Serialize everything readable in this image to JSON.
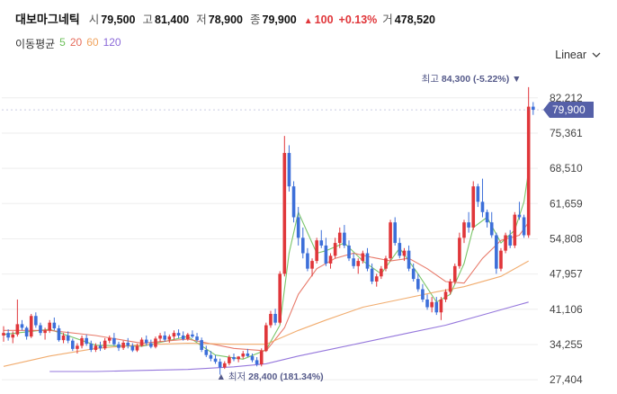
{
  "header": {
    "name": "대보마그네틱",
    "open_label": "시",
    "open": "79,500",
    "high_label": "고",
    "high": "81,400",
    "low_label": "저",
    "low": "78,900",
    "close_label": "종",
    "close": "79,900",
    "change_arrow": "▲",
    "change": "100",
    "change_pct": "+0.13%",
    "volume_label": "거",
    "volume": "478,520"
  },
  "ma_legend": {
    "label": "이동평균",
    "periods": [
      {
        "text": "5",
        "color": "#6bbf59"
      },
      {
        "text": "20",
        "color": "#e56b5a"
      },
      {
        "text": "60",
        "color": "#f0a35e"
      },
      {
        "text": "120",
        "color": "#8a68d8"
      }
    ]
  },
  "scale_select": {
    "value": "Linear",
    "icon": "chevron-down-icon"
  },
  "colors": {
    "up": "#e0363a",
    "down": "#3d6fd9",
    "current_label_bg": "#5560a8",
    "annotation": "#555a8a"
  },
  "chart_data": {
    "type": "candlestick",
    "y_ticks": [
      "82,212",
      "75,361",
      "68,510",
      "61,659",
      "54,808",
      "47,957",
      "41,106",
      "34,255",
      "27,404"
    ],
    "y_tick_values": [
      82212,
      75361,
      68510,
      61659,
      54808,
      47957,
      41106,
      34255,
      27404
    ],
    "ylim": [
      25500,
      89000
    ],
    "grid": true,
    "current_price": "79,900",
    "current_value": 79900,
    "high_annotation": {
      "label": "최고",
      "value": "84,300",
      "pct": "(-5.22%)",
      "arrow": "▼",
      "index": 113
    },
    "low_annotation": {
      "label": "최저",
      "value": "28,400",
      "pct": "(181.34%)",
      "arrow": "▲",
      "index": 47
    },
    "candles": [
      [
        36000,
        37800,
        34800,
        36500
      ],
      [
        36500,
        37200,
        35000,
        35600
      ],
      [
        35600,
        36800,
        34500,
        36200
      ],
      [
        36200,
        43000,
        35800,
        38200
      ],
      [
        38200,
        39000,
        37000,
        37500
      ],
      [
        37500,
        37800,
        35200,
        35800
      ],
      [
        35800,
        40200,
        35500,
        39800
      ],
      [
        39800,
        40500,
        37500,
        38000
      ],
      [
        38000,
        38500,
        36000,
        36500
      ],
      [
        36500,
        37500,
        35200,
        37000
      ],
      [
        37000,
        39000,
        36500,
        38500
      ],
      [
        38500,
        39500,
        37000,
        37400
      ],
      [
        37400,
        38000,
        34800,
        35100
      ],
      [
        35100,
        36500,
        34500,
        36000
      ],
      [
        36000,
        36800,
        34500,
        35000
      ],
      [
        35000,
        35400,
        33000,
        33400
      ],
      [
        33400,
        34500,
        32500,
        34000
      ],
      [
        34000,
        36000,
        33500,
        35500
      ],
      [
        35500,
        36200,
        34000,
        34400
      ],
      [
        34400,
        35000,
        32800,
        33200
      ],
      [
        33200,
        34500,
        32800,
        34000
      ],
      [
        34000,
        34800,
        33000,
        33500
      ],
      [
        33500,
        35500,
        33200,
        35000
      ],
      [
        35000,
        36000,
        34500,
        35500
      ],
      [
        35500,
        36500,
        34000,
        34300
      ],
      [
        34300,
        34800,
        33000,
        33600
      ],
      [
        33600,
        35000,
        33200,
        34600
      ],
      [
        34600,
        35500,
        33500,
        34000
      ],
      [
        34000,
        34500,
        32800,
        33100
      ],
      [
        33100,
        34400,
        32800,
        34000
      ],
      [
        34000,
        35600,
        33800,
        35200
      ],
      [
        35200,
        36000,
        34000,
        34500
      ],
      [
        34500,
        35200,
        33500,
        33800
      ],
      [
        33800,
        35800,
        33500,
        35400
      ],
      [
        35400,
        36500,
        34800,
        36000
      ],
      [
        36000,
        36800,
        34800,
        35200
      ],
      [
        35200,
        36200,
        34600,
        35800
      ],
      [
        35800,
        37000,
        35200,
        36500
      ],
      [
        36500,
        37200,
        35500,
        36000
      ],
      [
        36000,
        36800,
        35000,
        35300
      ],
      [
        35300,
        36500,
        35000,
        36200
      ],
      [
        36200,
        37000,
        35500,
        35800
      ],
      [
        35800,
        36500,
        34800,
        35100
      ],
      [
        35100,
        35600,
        32800,
        33200
      ],
      [
        33200,
        34000,
        31800,
        32200
      ],
      [
        32200,
        33000,
        31000,
        31500
      ],
      [
        31500,
        32200,
        30500,
        30900
      ],
      [
        30900,
        31500,
        28400,
        29800
      ],
      [
        29800,
        31000,
        29500,
        30600
      ],
      [
        30600,
        32200,
        30200,
        31800
      ],
      [
        31800,
        32500,
        31000,
        31400
      ],
      [
        31400,
        32000,
        30800,
        31900
      ],
      [
        31900,
        33000,
        31500,
        32500
      ],
      [
        32500,
        33400,
        31800,
        32000
      ],
      [
        32000,
        32500,
        30800,
        31200
      ],
      [
        31200,
        31800,
        30000,
        30400
      ],
      [
        30400,
        33500,
        30000,
        33000
      ],
      [
        33000,
        38500,
        32800,
        38000
      ],
      [
        38000,
        40800,
        37500,
        40200
      ],
      [
        40200,
        41200,
        38000,
        38500
      ],
      [
        38500,
        48500,
        38200,
        48000
      ],
      [
        48000,
        74800,
        47500,
        71500
      ],
      [
        71500,
        73000,
        64000,
        65000
      ],
      [
        65000,
        66000,
        58000,
        59000
      ],
      [
        59000,
        61000,
        53500,
        55000
      ],
      [
        55000,
        57000,
        51000,
        52000
      ],
      [
        52000,
        53000,
        48500,
        49000
      ],
      [
        49000,
        51000,
        47500,
        50500
      ],
      [
        50500,
        55000,
        50000,
        54500
      ],
      [
        54500,
        56500,
        53000,
        53500
      ],
      [
        53500,
        55000,
        49500,
        50000
      ],
      [
        50000,
        52000,
        49000,
        51500
      ],
      [
        51500,
        55000,
        51000,
        54000
      ],
      [
        54000,
        57000,
        53000,
        56000
      ],
      [
        56000,
        57500,
        53000,
        53500
      ],
      [
        53500,
        54500,
        50500,
        51000
      ],
      [
        51000,
        52000,
        49000,
        49500
      ],
      [
        49500,
        51000,
        48000,
        50500
      ],
      [
        50500,
        52500,
        50000,
        52000
      ],
      [
        52000,
        53000,
        48500,
        49000
      ],
      [
        49000,
        50000,
        46000,
        46500
      ],
      [
        46500,
        48000,
        45500,
        47500
      ],
      [
        47500,
        49500,
        47000,
        49000
      ],
      [
        49000,
        51500,
        48500,
        51000
      ],
      [
        51000,
        58500,
        50500,
        58000
      ],
      [
        58000,
        59000,
        53500,
        54000
      ],
      [
        54000,
        55000,
        51000,
        51500
      ],
      [
        51500,
        53000,
        50500,
        52500
      ],
      [
        52500,
        53500,
        48500,
        49000
      ],
      [
        49000,
        50000,
        46500,
        47000
      ],
      [
        47000,
        48000,
        44500,
        45000
      ],
      [
        45000,
        46000,
        42500,
        43000
      ],
      [
        43000,
        44000,
        41000,
        41500
      ],
      [
        41500,
        43500,
        40500,
        42500
      ],
      [
        42500,
        43500,
        40000,
        40500
      ],
      [
        40500,
        43500,
        39000,
        43000
      ],
      [
        43000,
        45000,
        42500,
        44500
      ],
      [
        44500,
        47000,
        44000,
        46500
      ],
      [
        46500,
        50000,
        46000,
        49500
      ],
      [
        49500,
        56000,
        49000,
        55000
      ],
      [
        55000,
        58500,
        54000,
        58000
      ],
      [
        58000,
        60000,
        56000,
        57000
      ],
      [
        57000,
        66000,
        56500,
        65000
      ],
      [
        65000,
        65500,
        61000,
        62000
      ],
      [
        62000,
        66500,
        59000,
        60000
      ],
      [
        60000,
        60500,
        57000,
        58000
      ],
      [
        58000,
        60000,
        55000,
        55500
      ],
      [
        55500,
        56000,
        48000,
        49000
      ],
      [
        49000,
        53000,
        48500,
        52500
      ],
      [
        52500,
        56000,
        52000,
        55500
      ],
      [
        55500,
        56500,
        53000,
        53500
      ],
      [
        53500,
        60000,
        53000,
        59500
      ],
      [
        59500,
        62000,
        58500,
        59000
      ],
      [
        59000,
        59500,
        55000,
        55500
      ],
      [
        55500,
        84300,
        55000,
        80500
      ],
      [
        80500,
        81400,
        78900,
        79900
      ]
    ],
    "ma_series": [
      {
        "period": 5,
        "color": "#6bbf59",
        "values": [
          [
            0,
            36200
          ],
          [
            10,
            37200
          ],
          [
            20,
            34100
          ],
          [
            30,
            33900
          ],
          [
            40,
            35800
          ],
          [
            46,
            32200
          ],
          [
            52,
            31400
          ],
          [
            57,
            33200
          ],
          [
            60,
            38000
          ],
          [
            62,
            52000
          ],
          [
            64,
            60000
          ],
          [
            66,
            56000
          ],
          [
            68,
            52000
          ],
          [
            70,
            52500
          ],
          [
            74,
            54000
          ],
          [
            78,
            50500
          ],
          [
            82,
            48000
          ],
          [
            86,
            53000
          ],
          [
            90,
            48000
          ],
          [
            94,
            42500
          ],
          [
            97,
            44000
          ],
          [
            100,
            50000
          ],
          [
            102,
            57000
          ],
          [
            105,
            59000
          ],
          [
            108,
            54000
          ],
          [
            111,
            56500
          ],
          [
            113,
            62000
          ],
          [
            114,
            68000
          ]
        ]
      },
      {
        "period": 20,
        "color": "#e56b5a",
        "values": [
          [
            0,
            37000
          ],
          [
            10,
            37000
          ],
          [
            20,
            36000
          ],
          [
            30,
            34500
          ],
          [
            40,
            35300
          ],
          [
            50,
            33500
          ],
          [
            57,
            33000
          ],
          [
            61,
            37500
          ],
          [
            64,
            44000
          ],
          [
            68,
            49000
          ],
          [
            72,
            51000
          ],
          [
            76,
            52000
          ],
          [
            80,
            51200
          ],
          [
            84,
            50500
          ],
          [
            88,
            51000
          ],
          [
            92,
            49000
          ],
          [
            96,
            46500
          ],
          [
            100,
            46200
          ],
          [
            104,
            51000
          ],
          [
            108,
            54500
          ],
          [
            112,
            55500
          ],
          [
            114,
            58000
          ]
        ]
      },
      {
        "period": 60,
        "color": "#f0a35e",
        "values": [
          [
            0,
            30000
          ],
          [
            10,
            32000
          ],
          [
            20,
            33500
          ],
          [
            30,
            34200
          ],
          [
            40,
            34500
          ],
          [
            50,
            34300
          ],
          [
            57,
            34300
          ],
          [
            64,
            37000
          ],
          [
            70,
            39000
          ],
          [
            78,
            41500
          ],
          [
            86,
            43000
          ],
          [
            94,
            44500
          ],
          [
            100,
            45500
          ],
          [
            108,
            47500
          ],
          [
            114,
            50500
          ]
        ]
      },
      {
        "period": 120,
        "color": "#8a68d8",
        "values": [
          [
            10,
            29000
          ],
          [
            20,
            29000
          ],
          [
            30,
            29200
          ],
          [
            40,
            29400
          ],
          [
            50,
            29900
          ],
          [
            57,
            30500
          ],
          [
            64,
            32000
          ],
          [
            72,
            33500
          ],
          [
            80,
            35000
          ],
          [
            88,
            36500
          ],
          [
            96,
            38000
          ],
          [
            104,
            40000
          ],
          [
            110,
            41500
          ],
          [
            114,
            42500
          ]
        ]
      }
    ]
  }
}
